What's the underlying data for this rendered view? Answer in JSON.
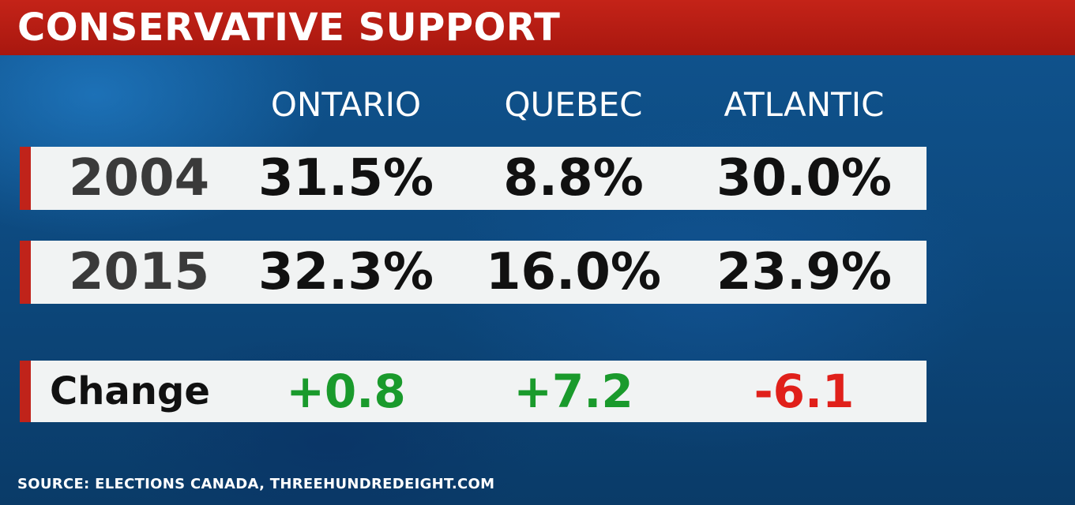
{
  "title": "CONSERVATIVE SUPPORT",
  "source": "SOURCE: ELECTIONS CANADA, THREEHUNDREDEIGHT.COM",
  "colors": {
    "title_bar": "#b01c12",
    "accent": "#c0231a",
    "positive": "#1a9a2c",
    "negative": "#e0201a"
  },
  "chart_data": {
    "type": "table",
    "title": "CONSERVATIVE SUPPORT",
    "columns": [
      "ONTARIO",
      "QUEBEC",
      "ATLANTIC"
    ],
    "rows": [
      {
        "label": "2004",
        "cells": [
          "31.5%",
          "8.8%",
          "30.0%"
        ],
        "values": [
          31.5,
          8.8,
          30.0
        ]
      },
      {
        "label": "2015",
        "cells": [
          "32.3%",
          "16.0%",
          "23.9%"
        ],
        "values": [
          32.3,
          16.0,
          23.9
        ]
      },
      {
        "label": "Change",
        "cells": [
          "+0.8",
          "+7.2",
          "-6.1"
        ],
        "values": [
          0.8,
          7.2,
          -6.1
        ]
      }
    ]
  }
}
